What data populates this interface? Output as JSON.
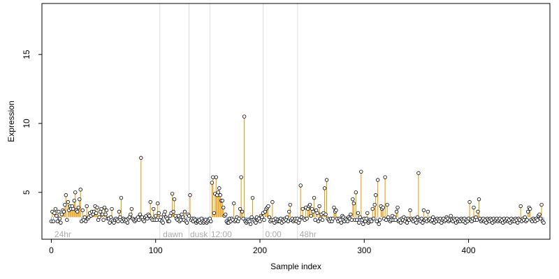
{
  "chart_data": {
    "type": "scatter",
    "title": "",
    "xlabel": "Sample index",
    "ylabel": "Expression",
    "xlim": [
      -9,
      478
    ],
    "ylim": [
      1.6,
      18.7
    ],
    "x_ticks": [
      0,
      100,
      200,
      300,
      400
    ],
    "y_ticks": [
      5,
      10,
      15
    ],
    "baseline": 3.2,
    "grid": false,
    "legend": "none",
    "vlines": [
      104,
      132,
      152,
      203,
      236
    ],
    "annotations": [
      {
        "x": 3,
        "y": 1.95,
        "text": "24hr"
      },
      {
        "x": 107,
        "y": 1.95,
        "text": "dawn"
      },
      {
        "x": 133,
        "y": 1.95,
        "text": "dusk"
      },
      {
        "x": 153,
        "y": 1.95,
        "text": "12:00"
      },
      {
        "x": 205,
        "y": 1.95,
        "text": "0:00"
      },
      {
        "x": 238,
        "y": 1.95,
        "text": "48hr"
      }
    ],
    "colors": {
      "above": "#e69500",
      "below": "#7b9fd6",
      "point_stroke": "#000000",
      "point_fill": "#ffffff",
      "vline": "#dddddd"
    },
    "y": [
      2.9,
      3.6,
      2.9,
      3.5,
      3.8,
      3.3,
      2.9,
      3.6,
      3.1,
      2.8,
      3.4,
      3.7,
      3.6,
      4.1,
      4.8,
      3.0,
      4.3,
      3.7,
      4.0,
      3.8,
      4.0,
      3.8,
      4.4,
      5.0,
      3.7,
      3.6,
      3.9,
      4.5,
      5.2,
      2.9,
      3.7,
      3.0,
      3.2,
      2.9,
      4.0,
      3.1,
      3.2,
      3.5,
      3.3,
      3.6,
      3.4,
      3.6,
      4.0,
      3.5,
      3.9,
      3.0,
      3.2,
      3.6,
      3.8,
      3.4,
      3.0,
      3.9,
      3.4,
      3.7,
      3.1,
      3.1,
      2.8,
      3.2,
      3.8,
      2.9,
      2.8,
      3.0,
      3.1,
      3.0,
      2.9,
      3.6,
      3.2,
      4.6,
      2.9,
      3.1,
      3.0,
      2.9,
      3.0,
      2.8,
      3.1,
      3.2,
      3.4,
      3.8,
      3.1,
      3.0,
      2.9,
      3.0,
      3.1,
      3.2,
      3.0,
      3.4,
      7.5,
      3.2,
      3.0,
      2.9,
      3.2,
      3.3,
      3.1,
      3.4,
      3.3,
      4.3,
      3.1,
      3.0,
      3.8,
      3.0,
      3.3,
      3.0,
      4.2,
      3.5,
      3.0,
      3.2,
      2.9,
      2.8,
      3.4,
      3.6,
      3.2,
      3.1,
      2.9,
      2.9,
      3.3,
      3.5,
      4.9,
      3.6,
      4.5,
      3.3,
      3.1,
      3.0,
      3.3,
      2.9,
      3.0,
      3.4,
      3.2,
      3.0,
      3.6,
      2.9,
      2.8,
      3.4,
      3.3,
      4.8,
      3.0,
      3.1,
      2.9,
      3.1,
      3.0,
      2.8,
      2.9,
      2.9,
      3.0,
      2.8,
      3.1,
      2.9,
      2.8,
      2.9,
      3.0,
      2.8,
      2.9,
      3.0,
      3.1,
      2.9,
      5.7,
      6.1,
      3.5,
      4.9,
      6.1,
      4.8,
      5.0,
      5.3,
      4.8,
      4.4,
      4.4,
      3.9,
      3.3,
      3.4,
      2.9,
      2.8,
      2.8,
      3.1,
      2.9,
      3.1,
      3.0,
      4.2,
      2.9,
      3.0,
      3.2,
      2.9,
      3.1,
      3.8,
      6.1,
      3.6,
      3.1,
      10.5,
      2.9,
      2.8,
      2.9,
      3.0,
      2.9,
      2.7,
      3.2,
      4.6,
      3.0,
      2.9,
      2.8,
      3.2,
      3.0,
      3.1,
      2.9,
      3.3,
      3.2,
      3.5,
      3.0,
      3.6,
      3.8,
      3.9,
      4.0,
      3.2,
      2.9,
      3.0,
      4.3,
      3.0,
      2.8,
      3.1,
      2.9,
      3.0,
      2.9,
      2.9,
      3.1,
      2.8,
      3.0,
      2.9,
      3.1,
      3.0,
      3.2,
      2.9,
      3.6,
      4.1,
      3.0,
      3.1,
      2.9,
      3.0,
      3.1,
      2.9,
      3.1,
      2.8,
      3.0,
      5.5,
      3.2,
      3.8,
      3.1,
      3.0,
      3.9,
      3.1,
      3.8,
      4.0,
      4.1,
      3.3,
      3.8,
      3.6,
      4.6,
      3.0,
      3.7,
      3.5,
      2.9,
      4.0,
      3.1,
      3.4,
      3.0,
      3.5,
      5.3,
      3.4,
      5.9,
      3.1,
      3.0,
      2.9,
      3.1,
      2.9,
      3.1,
      3.9,
      3.6,
      3.7,
      3.1,
      2.9,
      3.1,
      3.0,
      2.8,
      3.3,
      3.2,
      2.9,
      3.1,
      3.0,
      2.9,
      3.2,
      3.1,
      3.4,
      3.0,
      4.5,
      4.2,
      3.0,
      5.0,
      3.0,
      3.5,
      2.8,
      3.2,
      6.5,
      3.0,
      2.7,
      3.1,
      2.9,
      3.1,
      3.5,
      2.8,
      2.9,
      3.0,
      2.9,
      3.8,
      3.1,
      4.1,
      4.8,
      2.9,
      5.9,
      2.7,
      3.0,
      4.0,
      3.8,
      3.9,
      3.1,
      6.1,
      3.0,
      4.1,
      3.2,
      3.0,
      2.9,
      3.0,
      3.3,
      3.0,
      3.2,
      3.0,
      3.6,
      3.9,
      2.9,
      3.0,
      2.8,
      3.1,
      3.0,
      3.2,
      2.9,
      3.1,
      2.8,
      3.1,
      3.0,
      3.7,
      3.1,
      3.0,
      2.9,
      3.1,
      3.0,
      2.8,
      3.2,
      6.4,
      3.0,
      2.9,
      3.1,
      2.8,
      3.7,
      3.0,
      3.1,
      2.9,
      3.6,
      3.0,
      3.1,
      2.9,
      3.0,
      3.2,
      2.8,
      3.0,
      2.9,
      3.1,
      3.0,
      2.9,
      3.1,
      2.8,
      3.0,
      3.1,
      2.9,
      3.0,
      3.2,
      3.1,
      2.9,
      3.0,
      3.3,
      3.0,
      2.9,
      3.1,
      3.0,
      2.8,
      3.1,
      2.9,
      3.0,
      2.9,
      3.1,
      3.0,
      2.9,
      3.1,
      2.8,
      3.0,
      2.9,
      3.1,
      4.3,
      3.0,
      2.9,
      3.1,
      3.9,
      3.0,
      3.2,
      3.0,
      3.6,
      4.5,
      3.1,
      2.9,
      3.0,
      3.1,
      2.9,
      3.0,
      2.8,
      3.1,
      3.0,
      2.9,
      3.1,
      3.0,
      2.8,
      3.1,
      2.9,
      3.0,
      3.1,
      2.9,
      3.0,
      3.1,
      2.9,
      3.0,
      2.8,
      3.1,
      2.9,
      3.0,
      3.1,
      2.9,
      3.0,
      2.8,
      3.1,
      2.9,
      3.0,
      2.9,
      3.1,
      3.0,
      2.8,
      3.1,
      3.0,
      4.0,
      2.9,
      3.1,
      3.0,
      3.2,
      2.9,
      3.0,
      3.6,
      3.9,
      3.8,
      3.0,
      2.9,
      3.1,
      3.0,
      2.9,
      3.1,
      3.0,
      3.3,
      3.4,
      3.1,
      4.1,
      2.9,
      2.8
    ]
  }
}
